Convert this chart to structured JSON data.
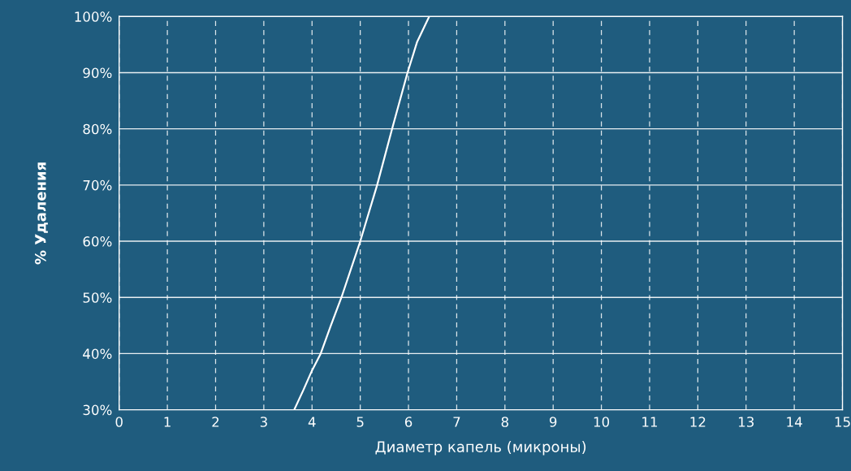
{
  "chart_data": {
    "type": "line",
    "xlabel": "Диаметр капель (микроны)",
    "ylabel": "% Удаления",
    "series": [
      {
        "color": "#ffffff",
        "x": [
          3.63,
          3.82,
          4.0,
          4.18,
          4.39,
          4.61,
          5.0,
          5.35,
          5.66,
          5.98,
          6.18,
          6.43
        ],
        "values": [
          30,
          33.5,
          37,
          40,
          45,
          50,
          60,
          70,
          80,
          90,
          95.5,
          100
        ]
      }
    ],
    "xlim": [
      0,
      15
    ],
    "xticks": [
      0,
      1,
      2,
      3,
      4,
      5,
      6,
      7,
      8,
      9,
      10,
      11,
      12,
      13,
      14,
      15
    ],
    "ylim": [
      30,
      100
    ],
    "yticks": [
      {
        "value": 30,
        "label": "30%"
      },
      {
        "value": 40,
        "label": "40%"
      },
      {
        "value": 50,
        "label": "50%"
      },
      {
        "value": 60,
        "label": "60%"
      },
      {
        "value": 70,
        "label": "70%"
      },
      {
        "value": 80,
        "label": "80%"
      },
      {
        "value": 90,
        "label": "90%"
      },
      {
        "value": 100,
        "label": "100%"
      }
    ],
    "grid": true,
    "marker": "none",
    "line_style": "solid",
    "legend": false
  }
}
